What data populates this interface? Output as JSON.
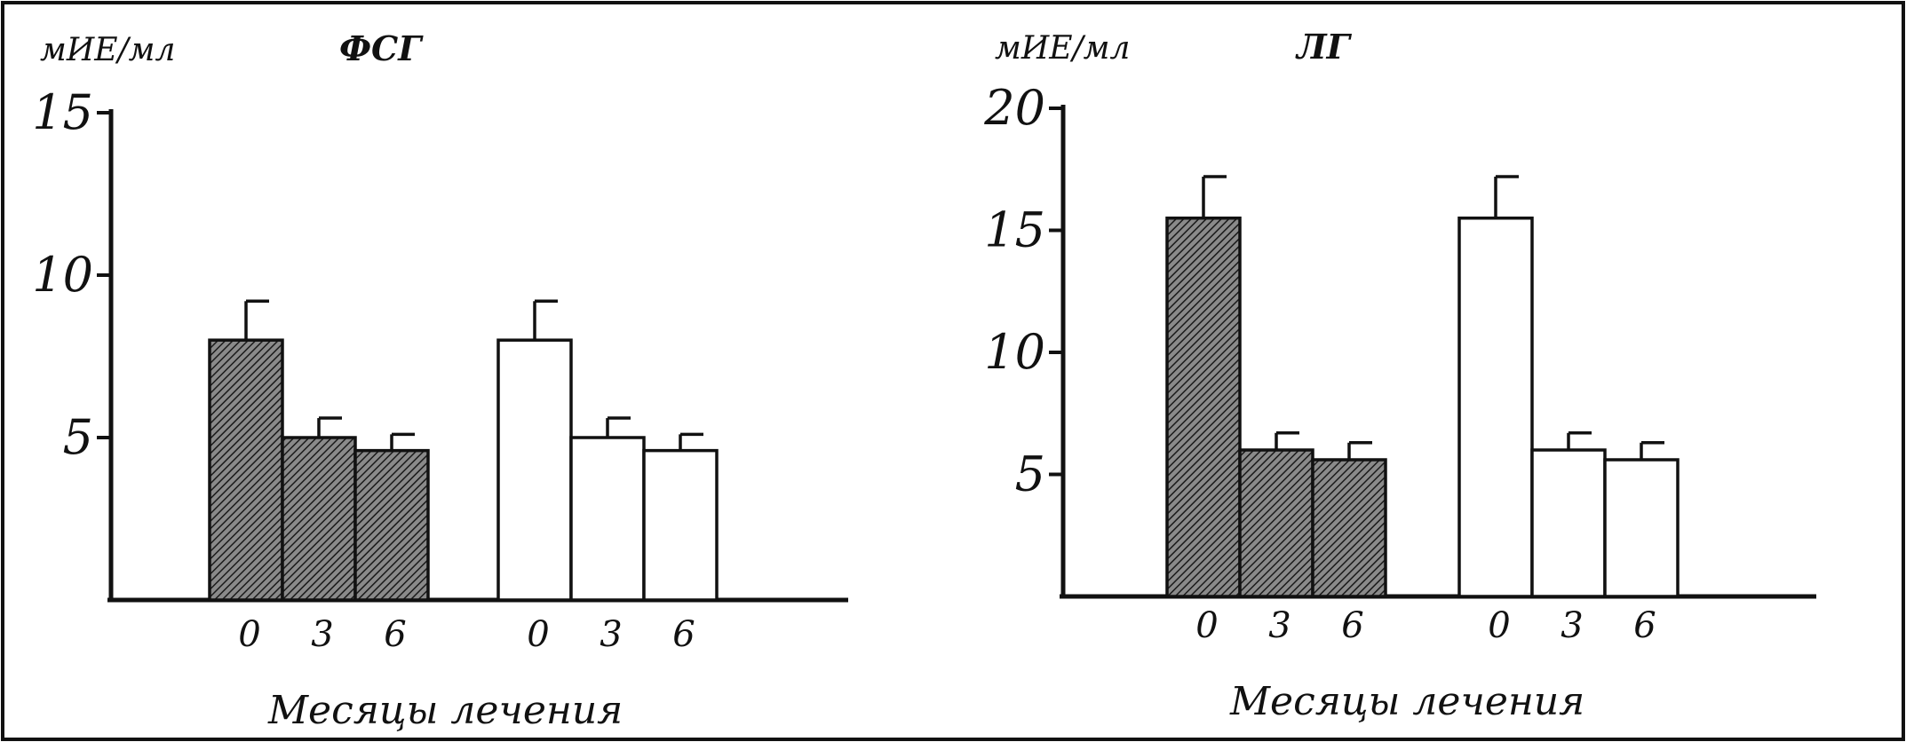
{
  "chart_data": [
    {
      "type": "bar",
      "title": "ФСГ",
      "ylabel": "мИЕ/мл",
      "xlabel": "Месяцы лечения",
      "ylim": [
        0,
        15
      ],
      "yticks": [
        5,
        10,
        15
      ],
      "categories": [
        "0",
        "3",
        "6"
      ],
      "series": [
        {
          "pattern": "hatched",
          "values": [
            8.0,
            5.0,
            4.6
          ],
          "errors": [
            1.2,
            0.6,
            0.5
          ]
        },
        {
          "pattern": "open",
          "values": [
            8.0,
            5.0,
            4.6
          ],
          "errors": [
            1.2,
            0.6,
            0.5
          ]
        }
      ],
      "grid": false
    },
    {
      "type": "bar",
      "title": "ЛГ",
      "ylabel": "мИЕ/мл",
      "xlabel": "Месяцы лечения",
      "ylim": [
        0,
        20
      ],
      "yticks": [
        5,
        10,
        15,
        20
      ],
      "categories": [
        "0",
        "3",
        "6"
      ],
      "series": [
        {
          "pattern": "hatched",
          "values": [
            15.5,
            6.0,
            5.6
          ],
          "errors": [
            1.7,
            0.7,
            0.7
          ]
        },
        {
          "pattern": "open",
          "values": [
            15.5,
            6.0,
            5.6
          ],
          "errors": [
            1.7,
            0.7,
            0.7
          ]
        }
      ],
      "grid": false
    }
  ]
}
